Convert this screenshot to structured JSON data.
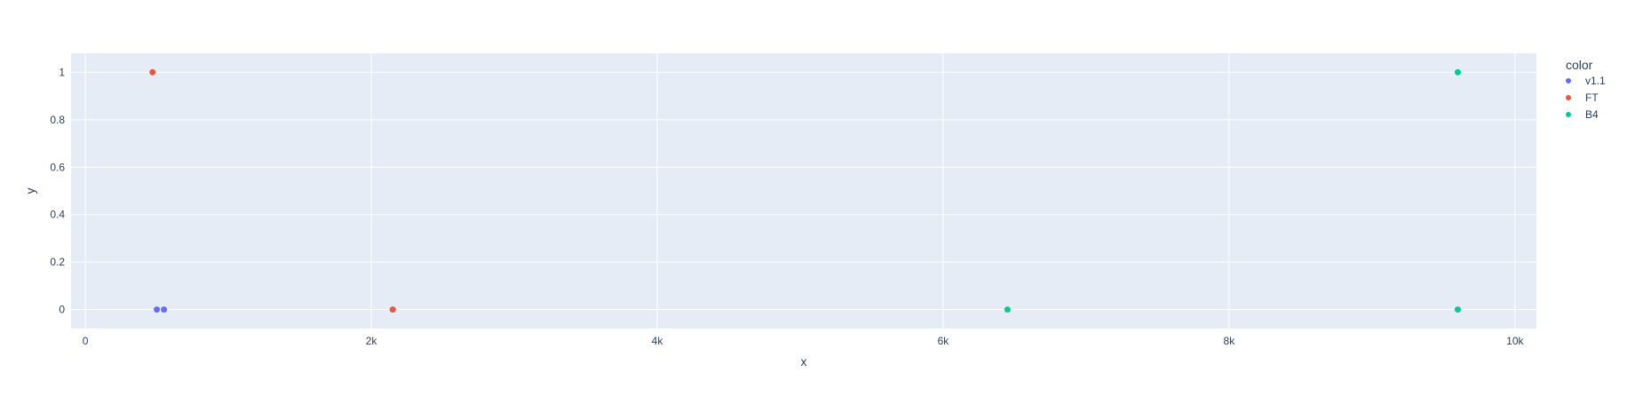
{
  "chart_data": {
    "type": "scatter",
    "title": "",
    "xlabel": "x",
    "ylabel": "y",
    "xlim": [
      -100,
      10150
    ],
    "ylim": [
      -0.08,
      1.08
    ],
    "x_ticks": [
      0,
      2000,
      4000,
      6000,
      8000,
      10000
    ],
    "x_tick_labels": [
      "0",
      "2k",
      "4k",
      "6k",
      "8k",
      "10k"
    ],
    "y_ticks": [
      0,
      0.2,
      0.4,
      0.6,
      0.8,
      1
    ],
    "y_tick_labels": [
      "0",
      "0.2",
      "0.4",
      "0.6",
      "0.8",
      "1"
    ],
    "grid": true,
    "legend_title": "color",
    "legend_position": "right",
    "colors": {
      "plot_background": "#e5ecf6",
      "grid": "#ffffff",
      "text": "#2a3f5f"
    },
    "series": [
      {
        "name": "v1.1",
        "color": "#636efa",
        "points": [
          {
            "x": 500,
            "y": 0
          },
          {
            "x": 550,
            "y": 0
          }
        ]
      },
      {
        "name": "FT",
        "color": "#ef553b",
        "points": [
          {
            "x": 470,
            "y": 1
          },
          {
            "x": 2150,
            "y": 0
          }
        ]
      },
      {
        "name": "B4",
        "color": "#00cc96",
        "points": [
          {
            "x": 6450,
            "y": 0
          },
          {
            "x": 9600,
            "y": 1
          },
          {
            "x": 9600,
            "y": 0
          }
        ]
      }
    ]
  }
}
